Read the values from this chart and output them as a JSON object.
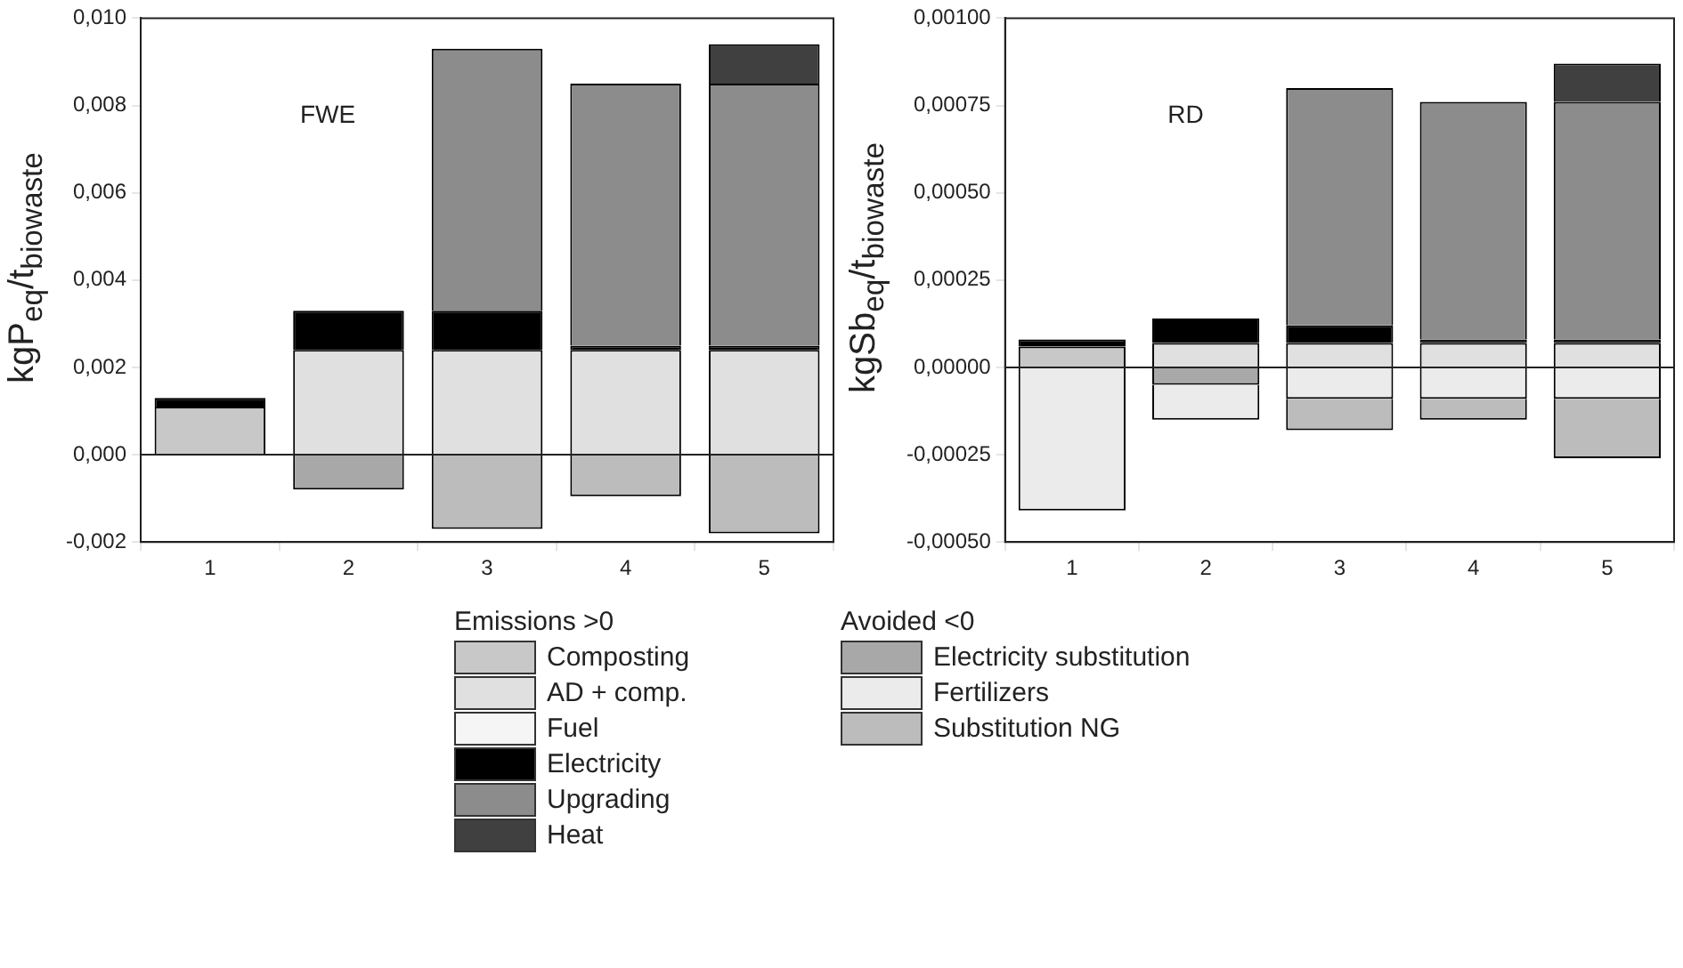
{
  "chart_data": [
    {
      "type": "bar",
      "stacked": true,
      "annotations": [
        "FWE"
      ],
      "ylabel": "kgP$_{eq}$/t$_{biowaste}$",
      "legend_title": "Emissions >0",
      "legend": "bottom",
      "categories": [
        "1",
        "2",
        "3",
        "4",
        "5"
      ],
      "ylim": [
        -0.002,
        0.01
      ],
      "yticks": [
        {
          "value": -0.002,
          "label": "-0,002"
        },
        {
          "value": 0,
          "label": "0,000"
        },
        {
          "value": 0.002,
          "label": "0,002"
        },
        {
          "value": 0.004,
          "label": "0,004"
        },
        {
          "value": 0.006,
          "label": "0,006"
        },
        {
          "value": 0.008,
          "label": "0,008"
        },
        {
          "value": 0.01,
          "label": "0,010"
        }
      ],
      "ref_lines": [
        {
          "axis": "y",
          "value": 0
        }
      ],
      "series": [
        {
          "name": "Composting",
          "color": "#c8c8c8",
          "values": [
            0.0011,
            null,
            null,
            null,
            null
          ]
        },
        {
          "name": "AD + comp.",
          "color": "#e0e0e0",
          "values": [
            null,
            0.0024,
            0.0024,
            0.0024,
            0.0024
          ]
        },
        {
          "name": "Fuel",
          "color": "#f5f5f5",
          "values": [
            null,
            null,
            null,
            null,
            null
          ]
        },
        {
          "name": "Electricity",
          "color": "#000000",
          "values": [
            0.0002,
            0.0009,
            0.0009,
            0.0001,
            0.0001
          ]
        },
        {
          "name": "Upgrading",
          "color": "#8c8c8c",
          "values": [
            null,
            null,
            0.006,
            0.006,
            0.006
          ]
        },
        {
          "name": "Heat",
          "color": "#404040",
          "values": [
            null,
            null,
            null,
            null,
            0.0009
          ]
        },
        {
          "color": "#a8a8a8",
          "values": [
            null,
            -0.0008,
            null,
            null,
            null
          ]
        },
        {
          "color": "#ebebeb",
          "values": [
            null,
            null,
            null,
            null,
            null
          ]
        },
        {
          "color": "#bcbcbc",
          "values": [
            null,
            null,
            -0.0017,
            -0.00095,
            -0.0018
          ]
        }
      ]
    },
    {
      "type": "bar",
      "stacked": true,
      "annotations": [
        "RD"
      ],
      "ylabel": "kgSb$_{eq}$/t$_{biowaste}$",
      "legend_title": "Avoided <0",
      "legend": "bottom",
      "categories": [
        "1",
        "2",
        "3",
        "4",
        "5"
      ],
      "ylim": [
        -0.0005,
        0.001
      ],
      "yticks": [
        {
          "value": -0.0005,
          "label": "-0,00050"
        },
        {
          "value": -0.00025,
          "label": "-0,00025"
        },
        {
          "value": 0,
          "label": "0,00000"
        },
        {
          "value": 0.00025,
          "label": "0,00025"
        },
        {
          "value": 0.0005,
          "label": "0,00050"
        },
        {
          "value": 0.00075,
          "label": "0,00075"
        },
        {
          "value": 0.001,
          "label": "0,00100"
        }
      ],
      "ref_lines": [
        {
          "axis": "y",
          "value": 0
        }
      ],
      "series": [
        {
          "color": "#c8c8c8",
          "values": [
            6e-05,
            null,
            null,
            null,
            null
          ]
        },
        {
          "color": "#e0e0e0",
          "values": [
            null,
            7e-05,
            7e-05,
            7e-05,
            7e-05
          ]
        },
        {
          "color": "#000000",
          "values": [
            2e-05,
            7e-05,
            5e-05,
            1e-05,
            1e-05
          ]
        },
        {
          "color": "#8c8c8c",
          "values": [
            null,
            null,
            0.00068,
            0.00068,
            0.00068
          ]
        },
        {
          "color": "#404040",
          "values": [
            null,
            null,
            null,
            null,
            0.00011
          ]
        },
        {
          "name": "Electricity substitution",
          "color": "#a8a8a8",
          "values": [
            null,
            -5e-05,
            null,
            null,
            null
          ]
        },
        {
          "name": "Fertilizers",
          "color": "#ebebeb",
          "values": [
            -0.00041,
            -0.0001,
            -9e-05,
            -9e-05,
            -9e-05
          ]
        },
        {
          "name": "Substitution NG",
          "color": "#bcbcbc",
          "values": [
            null,
            null,
            -9e-05,
            -6e-05,
            -0.00017
          ]
        }
      ]
    }
  ]
}
